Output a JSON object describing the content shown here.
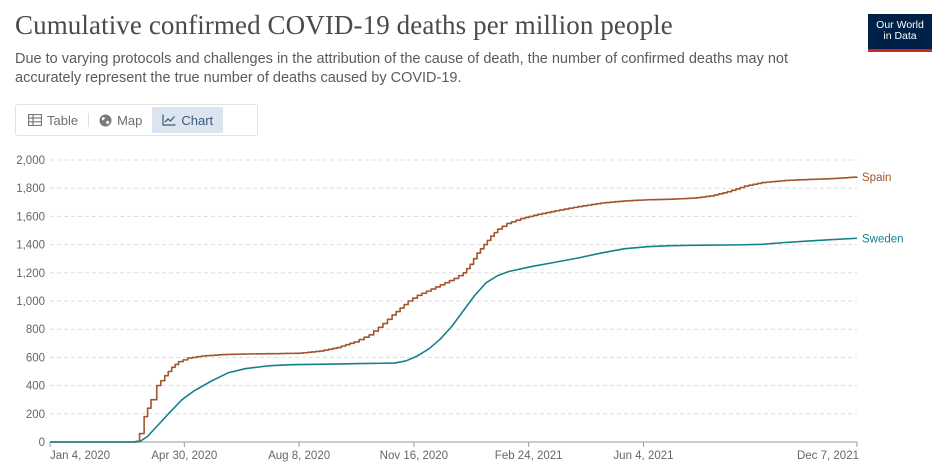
{
  "header": {
    "title": "Cumulative confirmed COVID-19 deaths per million people",
    "subtitle": "Due to varying protocols and challenges in the attribution of the cause of death, the number of confirmed deaths may not accurately represent the true number of deaths caused by COVID-19."
  },
  "logo": {
    "line1": "Our World",
    "line2": "in Data"
  },
  "tabs": [
    {
      "label": "Table",
      "icon": "table-icon",
      "active": false
    },
    {
      "label": "Map",
      "icon": "globe-icon",
      "active": false
    },
    {
      "label": "Chart",
      "icon": "line-chart-icon",
      "active": true
    }
  ],
  "colors": {
    "spain": "#a2542d",
    "sweden": "#15818c",
    "grid": "#dddddd"
  },
  "chart_data": {
    "type": "line",
    "title": "Cumulative confirmed COVID-19 deaths per million people",
    "xlabel": "",
    "ylabel": "",
    "ylim": [
      0,
      2000
    ],
    "yticks": [
      0,
      200,
      400,
      600,
      800,
      1000,
      1200,
      1400,
      1600,
      1800,
      2000
    ],
    "ytick_labels": [
      "0",
      "200",
      "400",
      "600",
      "800",
      "1,000",
      "1,200",
      "1,400",
      "1,600",
      "1,800",
      "2,000"
    ],
    "x_range_days": [
      0,
      703
    ],
    "xticks": [
      {
        "label": "Jan 4, 2020",
        "day": 0
      },
      {
        "label": "Apr 30, 2020",
        "day": 117
      },
      {
        "label": "Aug 8, 2020",
        "day": 217
      },
      {
        "label": "Nov 16, 2020",
        "day": 317
      },
      {
        "label": "Feb 24, 2021",
        "day": 417
      },
      {
        "label": "Jun 4, 2021",
        "day": 517
      },
      {
        "label": "Dec 7, 2021",
        "day": 703
      }
    ],
    "series": [
      {
        "name": "Spain",
        "step": true,
        "points": [
          [
            0,
            0
          ],
          [
            70,
            0
          ],
          [
            75,
            5
          ],
          [
            78,
            60
          ],
          [
            82,
            180
          ],
          [
            88,
            300
          ],
          [
            93,
            400
          ],
          [
            100,
            470
          ],
          [
            106,
            530
          ],
          [
            112,
            570
          ],
          [
            120,
            595
          ],
          [
            132,
            610
          ],
          [
            150,
            620
          ],
          [
            175,
            625
          ],
          [
            200,
            627
          ],
          [
            217,
            630
          ],
          [
            235,
            645
          ],
          [
            250,
            670
          ],
          [
            265,
            710
          ],
          [
            278,
            760
          ],
          [
            290,
            840
          ],
          [
            298,
            900
          ],
          [
            305,
            950
          ],
          [
            312,
            1000
          ],
          [
            320,
            1040
          ],
          [
            328,
            1070
          ],
          [
            336,
            1100
          ],
          [
            344,
            1130
          ],
          [
            352,
            1160
          ],
          [
            360,
            1200
          ],
          [
            366,
            1260
          ],
          [
            372,
            1340
          ],
          [
            378,
            1400
          ],
          [
            384,
            1460
          ],
          [
            390,
            1510
          ],
          [
            398,
            1550
          ],
          [
            410,
            1585
          ],
          [
            425,
            1615
          ],
          [
            440,
            1640
          ],
          [
            460,
            1670
          ],
          [
            480,
            1695
          ],
          [
            500,
            1710
          ],
          [
            520,
            1718
          ],
          [
            540,
            1722
          ],
          [
            560,
            1730
          ],
          [
            575,
            1745
          ],
          [
            590,
            1775
          ],
          [
            605,
            1815
          ],
          [
            620,
            1840
          ],
          [
            640,
            1855
          ],
          [
            660,
            1862
          ],
          [
            680,
            1868
          ],
          [
            703,
            1880
          ]
        ]
      },
      {
        "name": "Sweden",
        "step": false,
        "points": [
          [
            0,
            0
          ],
          [
            70,
            0
          ],
          [
            78,
            2
          ],
          [
            85,
            40
          ],
          [
            93,
            110
          ],
          [
            102,
            190
          ],
          [
            115,
            300
          ],
          [
            125,
            360
          ],
          [
            140,
            430
          ],
          [
            155,
            490
          ],
          [
            170,
            520
          ],
          [
            190,
            540
          ],
          [
            210,
            548
          ],
          [
            240,
            552
          ],
          [
            270,
            556
          ],
          [
            300,
            560
          ],
          [
            310,
            575
          ],
          [
            320,
            610
          ],
          [
            330,
            660
          ],
          [
            340,
            730
          ],
          [
            350,
            820
          ],
          [
            360,
            930
          ],
          [
            370,
            1040
          ],
          [
            380,
            1130
          ],
          [
            390,
            1180
          ],
          [
            400,
            1210
          ],
          [
            420,
            1245
          ],
          [
            440,
            1275
          ],
          [
            460,
            1305
          ],
          [
            480,
            1340
          ],
          [
            500,
            1370
          ],
          [
            520,
            1385
          ],
          [
            540,
            1392
          ],
          [
            560,
            1395
          ],
          [
            600,
            1398
          ],
          [
            620,
            1402
          ],
          [
            640,
            1415
          ],
          [
            660,
            1425
          ],
          [
            680,
            1435
          ],
          [
            703,
            1445
          ]
        ]
      }
    ]
  }
}
